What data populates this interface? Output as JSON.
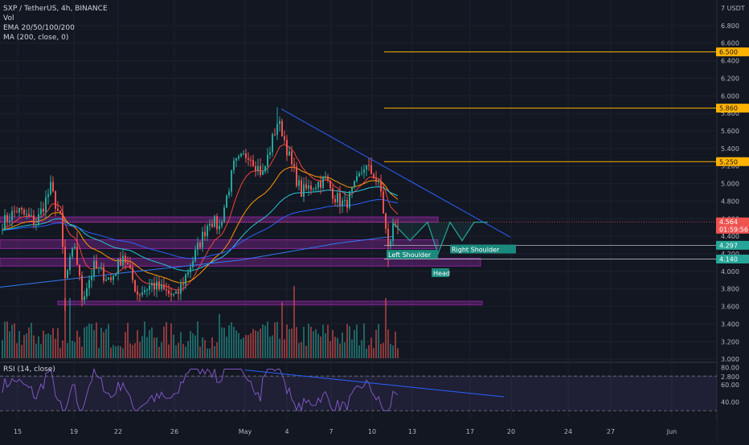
{
  "legend": {
    "symbol_line": "SXP / TetherUS, 4h, BINANCE",
    "indicators": [
      "Vol",
      "EMA 20/50/100/200",
      "MA (200, close, 0)"
    ]
  },
  "currency_label": "7 USDT",
  "rsi_label": "RSI (14, close)",
  "colors": {
    "background": "#131722",
    "up": "#26a69a",
    "down": "#ef5350",
    "trendline": "#2962ff",
    "resistance": "#ffb300",
    "zone": "#9c27b0"
  },
  "price_badges": [
    {
      "label": "6.500",
      "value": 6.5,
      "style": "orange"
    },
    {
      "label": "5.860",
      "value": 5.86,
      "style": "orange"
    },
    {
      "label": "5.250",
      "value": 5.25,
      "style": "orange"
    },
    {
      "label": "4.564",
      "value": 4.564,
      "style": "red"
    },
    {
      "label": "01:59:56",
      "value": 4.48,
      "style": "red-sub"
    },
    {
      "label": "4.297",
      "value": 4.297,
      "style": "green"
    },
    {
      "label": "4.140",
      "value": 4.14,
      "style": "green"
    }
  ],
  "pattern_labels": [
    "Left Shoulder",
    "Head",
    "Right Shoulder"
  ],
  "chart_data": {
    "type": "candlestick",
    "price_axis": {
      "ticks": [
        "7 USDT",
        "6.800",
        "6.600",
        "6.400",
        "6.200",
        "6.000",
        "5.800",
        "5.600",
        "5.400",
        "5.200",
        "5.000",
        "4.800",
        "4.600",
        "4.400",
        "4.200",
        "4.000",
        "3.800",
        "3.600",
        "3.400",
        "3.200",
        "3.000",
        "2.800"
      ]
    },
    "rsi_axis": {
      "ticks": [
        "80.00",
        "60.00",
        "40.00"
      ],
      "bands": [
        70,
        30
      ]
    },
    "time_axis": {
      "ticks": [
        "15",
        "19",
        "22",
        "26",
        "May",
        "4",
        "7",
        "10",
        "13",
        "17",
        "20",
        "24",
        "27",
        "Jun"
      ]
    },
    "horizontal_levels": [
      6.5,
      5.86,
      5.25,
      4.297,
      4.14
    ],
    "current_price": 4.564,
    "candle_countdown": "01:59:56",
    "pattern": "inverse head and shoulders",
    "key_prices": {
      "start": 4.6,
      "low_before_rally": 3.6,
      "peak": 5.85,
      "last_high": 5.25,
      "last": 4.564
    }
  }
}
